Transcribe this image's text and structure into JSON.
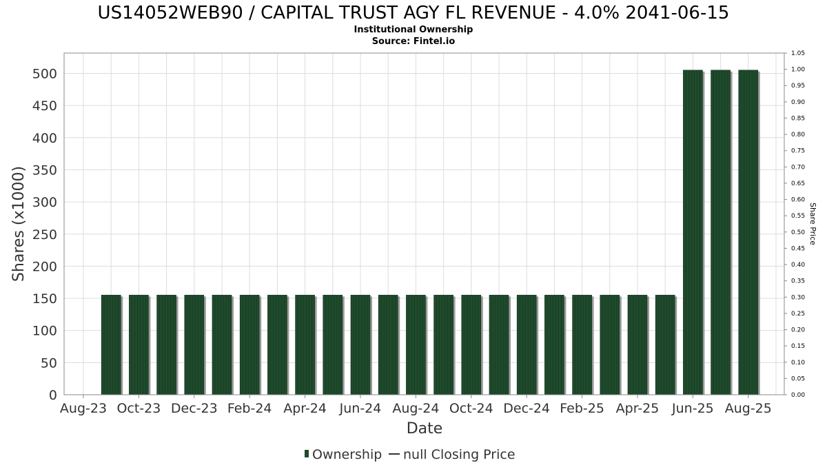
{
  "chart_data": {
    "type": "bar",
    "title": "US14052WEB90 / CAPITAL TRUST AGY FL REVENUE - 4.0% 2041-06-15",
    "subtitle": "Institutional Ownership",
    "source": "Source: Fintel.io",
    "xlabel": "Date",
    "ylabel": "Shares (x1000)",
    "y2label": "Share Price",
    "ylim": [
      0,
      530
    ],
    "y2lim": [
      0,
      1.05
    ],
    "yticks": [
      0,
      50,
      100,
      150,
      200,
      250,
      300,
      350,
      400,
      450,
      500
    ],
    "y2ticks": [
      "0.00",
      "0.05",
      "0.10",
      "0.15",
      "0.20",
      "0.25",
      "0.30",
      "0.35",
      "0.40",
      "0.45",
      "0.50",
      "0.55",
      "0.60",
      "0.65",
      "0.70",
      "0.75",
      "0.80",
      "0.85",
      "0.90",
      "0.95",
      "1.00",
      "1.05"
    ],
    "xtick_labels": [
      "Aug-23",
      "Oct-23",
      "Dec-23",
      "Feb-24",
      "Apr-24",
      "Jun-24",
      "Aug-24",
      "Oct-24",
      "Dec-24",
      "Feb-25",
      "Apr-25",
      "Jun-25",
      "Aug-25"
    ],
    "categories": [
      "Sep-23",
      "Oct-23",
      "Nov-23",
      "Dec-23",
      "Jan-24",
      "Feb-24",
      "Mar-24",
      "Apr-24",
      "May-24",
      "Jun-24",
      "Jul-24",
      "Aug-24",
      "Sep-24",
      "Oct-24",
      "Nov-24",
      "Dec-24",
      "Jan-25",
      "Feb-25",
      "Mar-25",
      "Apr-25",
      "May-25",
      "Jun-25",
      "Jul-25",
      "Aug-25"
    ],
    "series": [
      {
        "name": "Ownership",
        "color": "#1f4a2c",
        "values": [
          155,
          155,
          155,
          155,
          155,
          155,
          155,
          155,
          155,
          155,
          155,
          155,
          155,
          155,
          155,
          155,
          155,
          155,
          155,
          155,
          155,
          505,
          505,
          505
        ]
      }
    ],
    "legend": {
      "placement": "bottom",
      "items": [
        "Ownership",
        "null Closing Price"
      ]
    },
    "grid": true
  }
}
